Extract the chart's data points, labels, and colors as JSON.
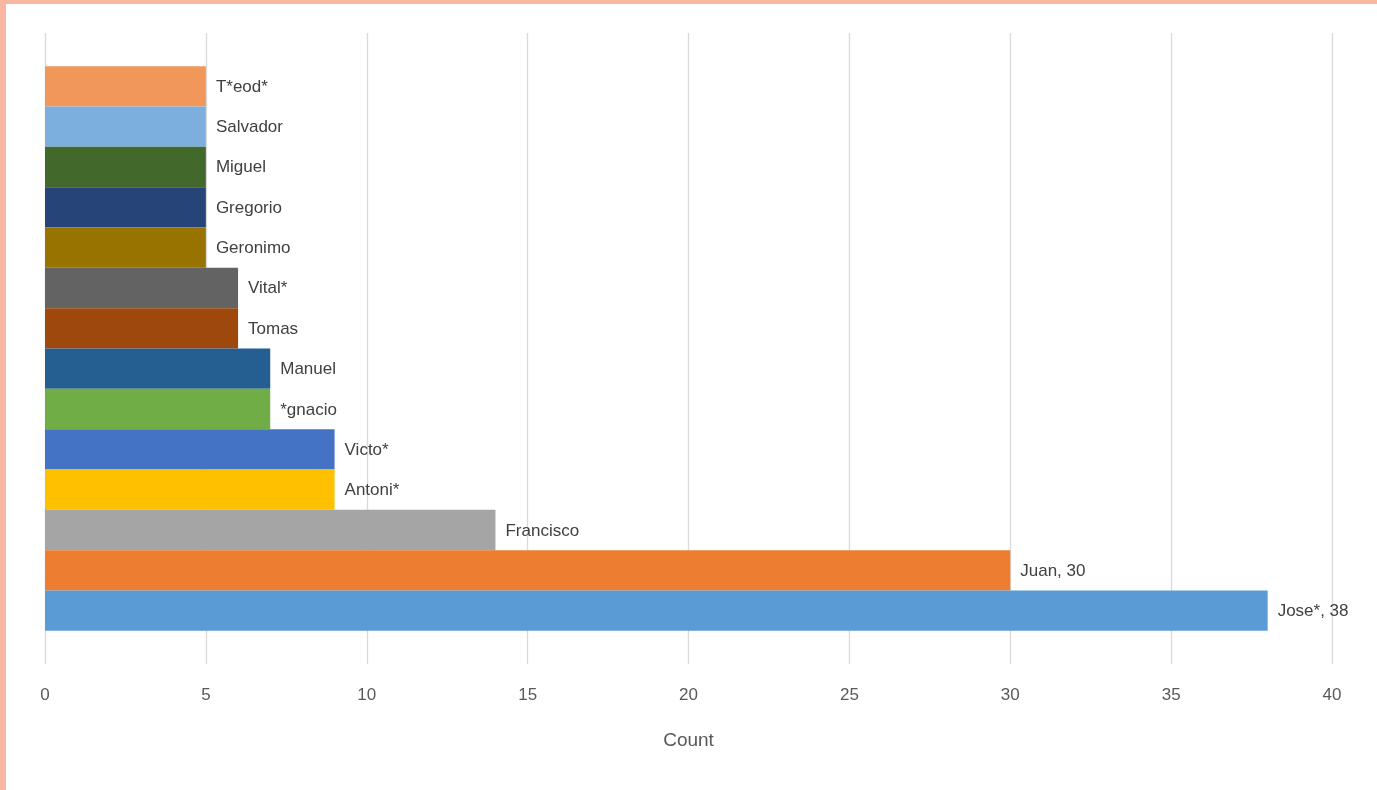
{
  "chart_data": {
    "type": "bar",
    "orientation": "horizontal",
    "xlabel": "Count",
    "categories": [
      null
    ],
    "series": [
      {
        "name": "T*eod*",
        "color": "#f1975a",
        "values": [
          5
        ]
      },
      {
        "name": "Salvador",
        "color": "#7cafdd",
        "values": [
          5
        ]
      },
      {
        "name": "Miguel",
        "color": "#43682b",
        "values": [
          5
        ]
      },
      {
        "name": "Gregorio",
        "color": "#264478",
        "values": [
          5
        ]
      },
      {
        "name": "Geronimo",
        "color": "#997300",
        "values": [
          5
        ]
      },
      {
        "name": "Vital*",
        "color": "#636363",
        "values": [
          6
        ]
      },
      {
        "name": "Tomas",
        "color": "#9e480e",
        "values": [
          6
        ]
      },
      {
        "name": "Manuel",
        "color": "#255e91",
        "values": [
          7
        ]
      },
      {
        "name": "*gnacio",
        "color": "#70ad47",
        "values": [
          7
        ]
      },
      {
        "name": "Victo*",
        "color": "#4472c4",
        "values": [
          9
        ]
      },
      {
        "name": "Antoni*",
        "color": "#ffc000",
        "values": [
          9
        ]
      },
      {
        "name": "Francisco",
        "color": "#a5a5a5",
        "values": [
          14
        ]
      },
      {
        "color": "#ed7d31",
        "values": [
          30
        ],
        "value_labels": [
          "Juan, 30"
        ]
      },
      {
        "color": "#5b9bd5",
        "values": [
          38
        ],
        "value_labels": [
          "Jose*, 38"
        ]
      }
    ],
    "xlim": [
      0,
      40
    ],
    "xticks": [
      0,
      5,
      10,
      15,
      20,
      25,
      30,
      35,
      40
    ],
    "grid": "x"
  }
}
